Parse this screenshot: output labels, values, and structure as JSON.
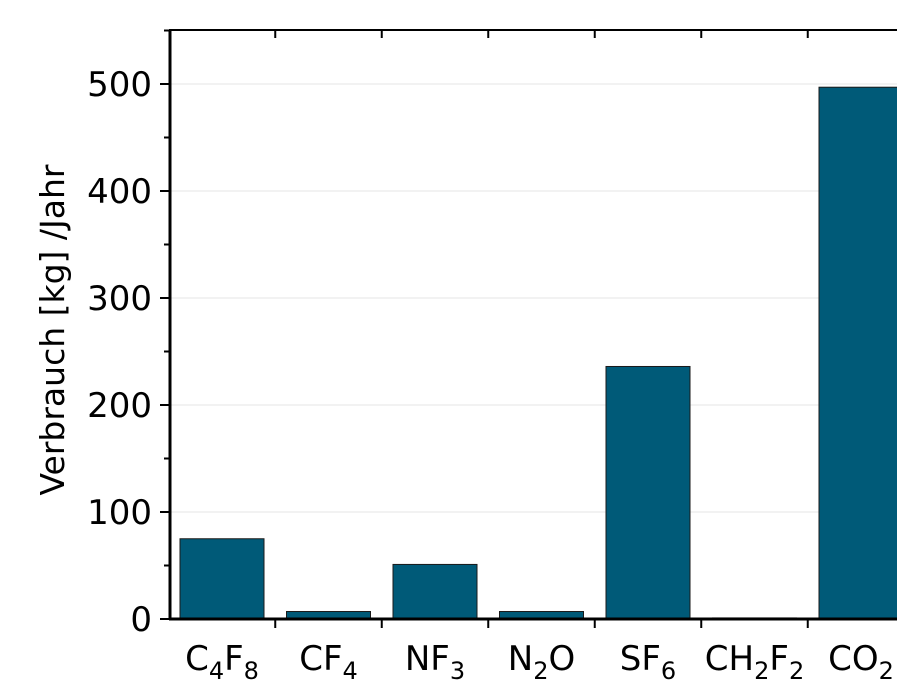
{
  "chart_data": {
    "type": "bar",
    "title": "",
    "xlabel": "",
    "ylabel": "Verbrauch [kg] /Jahr",
    "ylim": [
      0,
      550
    ],
    "yticks": [
      0,
      100,
      200,
      300,
      400,
      500
    ],
    "ytick_labels": [
      "0",
      "100",
      "200",
      "300",
      "400",
      "500"
    ],
    "grid": "horizontal",
    "bar_color": "#005a78",
    "categories": [
      {
        "base": "C",
        "sub1": "4",
        "mid": "F",
        "sub2": "8",
        "text": "C4F8"
      },
      {
        "base": "CF",
        "sub1": "4",
        "mid": "",
        "sub2": "",
        "text": "CF4"
      },
      {
        "base": "NF",
        "sub1": "3",
        "mid": "",
        "sub2": "",
        "text": "NF3"
      },
      {
        "base": "N",
        "sub1": "2",
        "mid": "O",
        "sub2": "",
        "text": "N2O"
      },
      {
        "base": "SF",
        "sub1": "6",
        "mid": "",
        "sub2": "",
        "text": "SF6"
      },
      {
        "base": "CH",
        "sub1": "2",
        "mid": "F",
        "sub2": "2",
        "text": "CH2F2"
      },
      {
        "base": "CO",
        "sub1": "2",
        "mid": "",
        "sub2": "",
        "text": "CO2"
      }
    ],
    "values": [
      75,
      7,
      51,
      7,
      236,
      1,
      497
    ]
  }
}
